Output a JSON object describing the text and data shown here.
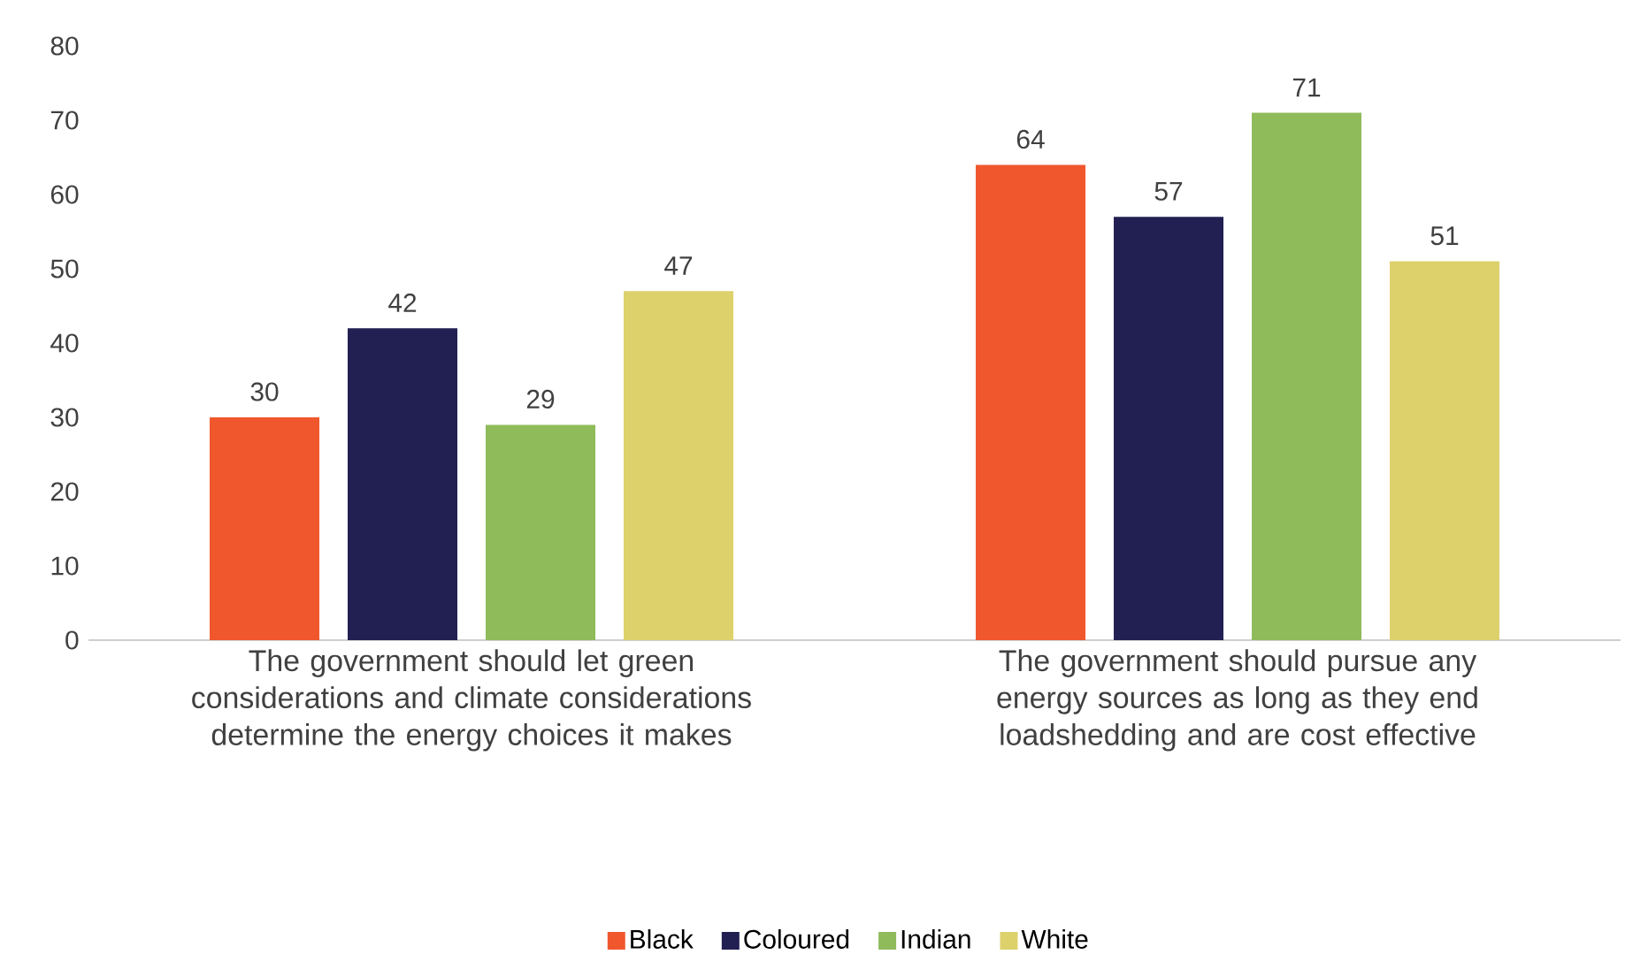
{
  "chart_data": {
    "type": "bar",
    "categories": [
      "The government should let green considerations and climate considerations determine the energy choices it makes",
      "The government should pursue any energy sources as long as they end loadshedding and are cost effective"
    ],
    "series": [
      {
        "name": "Black",
        "color": "#f0572d",
        "values": [
          30,
          64
        ]
      },
      {
        "name": "Coloured",
        "color": "#221f52",
        "values": [
          42,
          57
        ]
      },
      {
        "name": "Indian",
        "color": "#8fbb5b",
        "values": [
          29,
          71
        ]
      },
      {
        "name": "White",
        "color": "#ddd16b",
        "values": [
          47,
          51
        ]
      }
    ],
    "ylim": [
      0,
      80
    ],
    "yticks": [
      0,
      10,
      20,
      30,
      40,
      50,
      60,
      70,
      80
    ],
    "data_labels": true,
    "legend": "bottom",
    "grid": false
  }
}
